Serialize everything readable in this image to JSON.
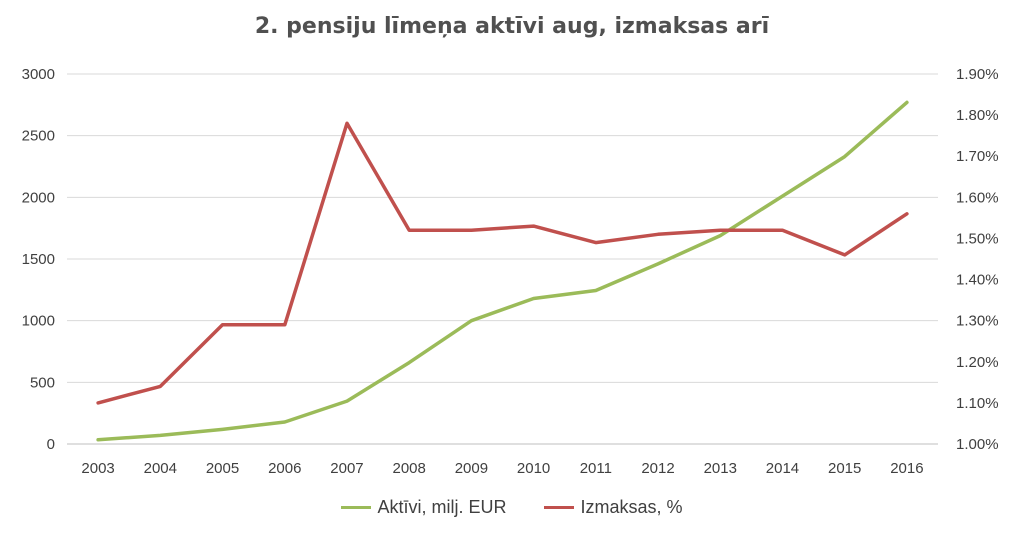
{
  "chart_data": {
    "type": "line",
    "title": "2. pensiju līmeņa aktīvi aug, izmaksas arī",
    "categories": [
      "2003",
      "2004",
      "2005",
      "2006",
      "2007",
      "2008",
      "2009",
      "2010",
      "2011",
      "2012",
      "2013",
      "2014",
      "2015",
      "2016"
    ],
    "series": [
      {
        "name": "Aktīvi, milj. EUR",
        "axis": "left",
        "color": "#9bbb59",
        "values": [
          35,
          70,
          118,
          178,
          348,
          660,
          1000,
          1180,
          1245,
          1460,
          1690,
          2010,
          2330,
          2770
        ]
      },
      {
        "name": "Izmaksas, %",
        "axis": "right",
        "color": "#c0504d",
        "values": [
          1.1,
          1.14,
          1.29,
          1.29,
          1.78,
          1.52,
          1.52,
          1.53,
          1.49,
          1.51,
          1.52,
          1.52,
          1.46,
          1.56
        ]
      }
    ],
    "y_left": {
      "min": 0,
      "max": 3000,
      "ticks": [
        "0",
        "500",
        "1000",
        "1500",
        "2000",
        "2500",
        "3000"
      ]
    },
    "y_right": {
      "min": 1.0,
      "max": 1.9,
      "ticks": [
        "1.00%",
        "1.10%",
        "1.20%",
        "1.30%",
        "1.40%",
        "1.50%",
        "1.60%",
        "1.70%",
        "1.80%",
        "1.90%"
      ]
    },
    "grid": true,
    "legend_position": "bottom"
  }
}
